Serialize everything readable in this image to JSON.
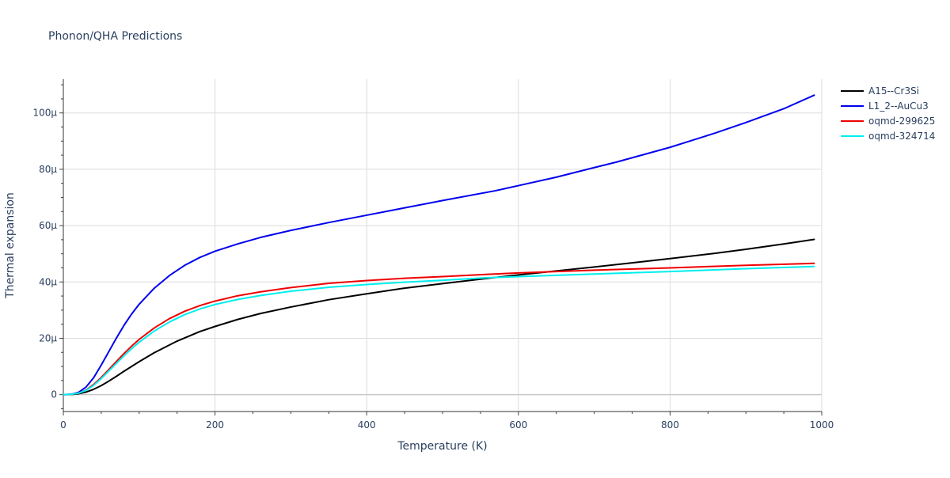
{
  "chart_data": {
    "type": "line",
    "title": "Phonon/QHA Predictions",
    "xlabel": "Temperature (K)",
    "ylabel": "Thermal expansion",
    "xlim": [
      0,
      1000
    ],
    "ylim": [
      -6e-06,
      0.000112
    ],
    "x_ticks": [
      0,
      200,
      400,
      600,
      800,
      1000
    ],
    "x_tick_labels": [
      "0",
      "200",
      "400",
      "600",
      "800",
      "1000"
    ],
    "y_ticks": [
      0,
      2e-05,
      4e-05,
      6e-05,
      8e-05,
      0.0001
    ],
    "y_tick_labels": [
      "0",
      "20µ",
      "40µ",
      "60µ",
      "80µ",
      "100µ"
    ],
    "grid": true,
    "legend_position": "top-right",
    "series": [
      {
        "name": "A15--Cr3Si",
        "color": "#000000",
        "x": [
          0,
          10,
          20,
          30,
          40,
          50,
          60,
          70,
          80,
          100,
          120,
          150,
          180,
          200,
          230,
          260,
          300,
          350,
          400,
          450,
          500,
          560,
          600,
          650,
          700,
          750,
          800,
          860,
          900,
          950,
          990
        ],
        "y": [
          0,
          5e-08,
          3e-07,
          9e-07,
          1.9e-06,
          3.2e-06,
          4.8e-06,
          6.5e-06,
          8.3e-06,
          1.17e-05,
          1.49e-05,
          1.9e-05,
          2.24e-05,
          2.42e-05,
          2.67e-05,
          2.88e-05,
          3.11e-05,
          3.37e-05,
          3.58e-05,
          3.78e-05,
          3.94e-05,
          4.13e-05,
          4.25e-05,
          4.39e-05,
          4.53e-05,
          4.68e-05,
          4.83e-05,
          5.02e-05,
          5.16e-05,
          5.35e-05,
          5.51e-05
        ]
      },
      {
        "name": "L1_2--AuCu3",
        "color": "#0000ee",
        "x": [
          0,
          10,
          20,
          30,
          40,
          50,
          60,
          70,
          80,
          90,
          100,
          120,
          140,
          160,
          180,
          200,
          230,
          260,
          300,
          350,
          400,
          450,
          500,
          570,
          600,
          650,
          700,
          730,
          800,
          860,
          900,
          950,
          990
        ],
        "y": [
          0,
          1e-07,
          8e-07,
          2.7e-06,
          6e-06,
          1.05e-05,
          1.53e-05,
          2.01e-05,
          2.46e-05,
          2.86e-05,
          3.21e-05,
          3.78e-05,
          4.23e-05,
          4.59e-05,
          4.87e-05,
          5.09e-05,
          5.35e-05,
          5.58e-05,
          5.83e-05,
          6.11e-05,
          6.37e-05,
          6.63e-05,
          6.89e-05,
          7.24e-05,
          7.42e-05,
          7.72e-05,
          8.06e-05,
          8.26e-05,
          8.78e-05,
          9.29e-05,
          9.66e-05,
          0.0001015,
          0.0001063
        ]
      },
      {
        "name": "oqmd-299625",
        "color": "#ee0000",
        "x": [
          0,
          10,
          20,
          30,
          40,
          50,
          60,
          70,
          80,
          90,
          100,
          120,
          140,
          160,
          180,
          200,
          230,
          260,
          300,
          350,
          400,
          450,
          500,
          560,
          600,
          700,
          800,
          900,
          990
        ],
        "y": [
          0,
          1e-07,
          5e-07,
          1.6e-06,
          3.6e-06,
          6.1e-06,
          8.9e-06,
          1.18e-05,
          1.46e-05,
          1.72e-05,
          1.96e-05,
          2.37e-05,
          2.7e-05,
          2.96e-05,
          3.16e-05,
          3.32e-05,
          3.51e-05,
          3.65e-05,
          3.8e-05,
          3.95e-05,
          4.05e-05,
          4.13e-05,
          4.19e-05,
          4.27e-05,
          4.32e-05,
          4.42e-05,
          4.5e-05,
          4.59e-05,
          4.66e-05
        ]
      },
      {
        "name": "oqmd-324714",
        "color": "#00eeee",
        "x": [
          0,
          10,
          20,
          30,
          40,
          50,
          60,
          70,
          80,
          90,
          100,
          120,
          140,
          160,
          180,
          200,
          230,
          260,
          300,
          350,
          400,
          450,
          500,
          560,
          600,
          700,
          800,
          900,
          990
        ],
        "y": [
          0,
          1e-07,
          5e-07,
          1.5e-06,
          3.3e-06,
          5.7e-06,
          8.4e-06,
          1.11e-05,
          1.38e-05,
          1.63e-05,
          1.86e-05,
          2.26e-05,
          2.58e-05,
          2.84e-05,
          3.04e-05,
          3.2e-05,
          3.38e-05,
          3.52e-05,
          3.67e-05,
          3.81e-05,
          3.91e-05,
          3.99e-05,
          4.06e-05,
          4.15e-05,
          4.19e-05,
          4.28e-05,
          4.37e-05,
          4.47e-05,
          4.55e-05
        ]
      }
    ]
  }
}
